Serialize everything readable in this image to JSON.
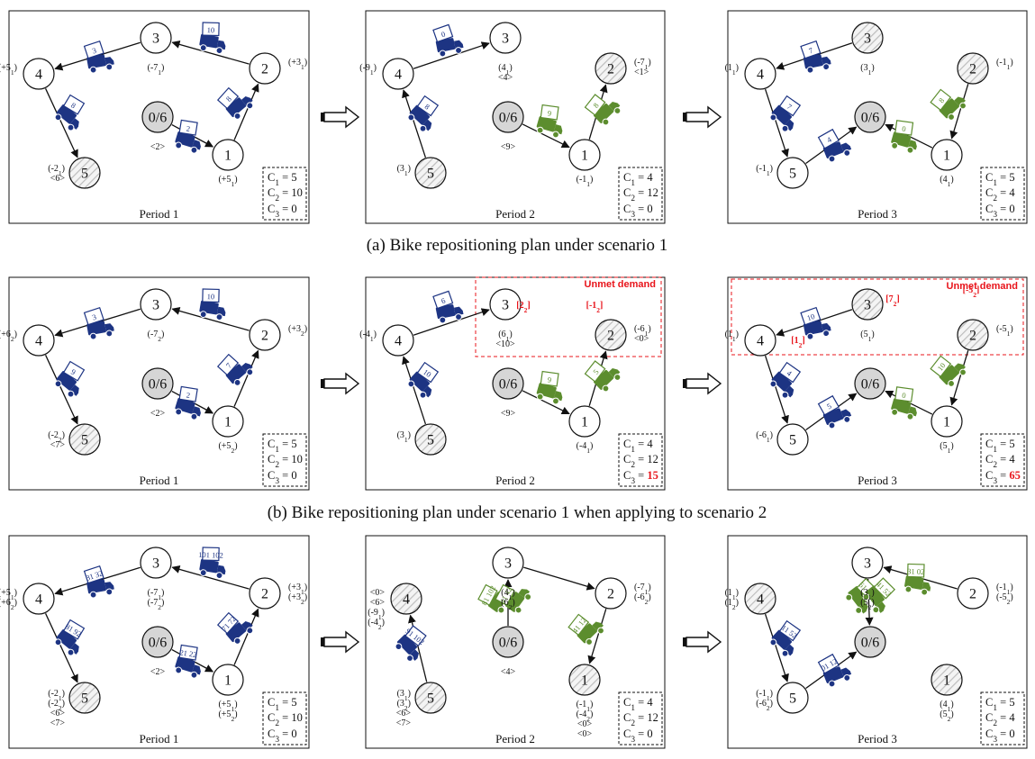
{
  "colors": {
    "blue_truck": "#1d3483",
    "green_truck": "#5c8d2e",
    "red": "#e8141b",
    "depot_fill": "#d6d6d6",
    "hatch": "#bdbdbd"
  },
  "icons": {
    "truck": "truck-icon",
    "next": "arrow-right-icon"
  },
  "captions": [
    "(a) Bike repositioning plan under scenario 1",
    "(b) Bike repositioning plan under scenario 1 when applying to scenario 2"
  ],
  "rows": [
    {
      "periods": [
        {
          "title": "Period 1",
          "costs": {
            "c1": "C1 = 5",
            "c2": "C2 = 10",
            "c3": "C3 = 0",
            "c3_red": ""
          },
          "nodes": [
            {
              "label": "3",
              "annotations": [
                "(-71)"
              ]
            },
            {
              "label": "2",
              "annotations": [
                "(+31)"
              ]
            },
            {
              "label": "4",
              "annotations": [
                "(+51)"
              ]
            },
            {
              "label": "0/6",
              "annotations": [
                "<2>"
              ]
            },
            {
              "label": "1",
              "annotations": [
                "(+51)"
              ]
            },
            {
              "label": "5",
              "annotations": [
                "(-21)",
                "<6>"
              ]
            }
          ],
          "trucks": [
            "3",
            "10",
            "8",
            "2",
            "8"
          ]
        },
        {
          "title": "Period 2",
          "costs": {
            "c1": "C1 = 4",
            "c2": "C2 = 12",
            "c3": "C3 = 0",
            "c3_red": ""
          },
          "nodes": [
            {
              "label": "3",
              "annotations": [
                "(41)",
                "<4>"
              ]
            },
            {
              "label": "2",
              "annotations": [
                "(-71)",
                "<1>"
              ]
            },
            {
              "label": "4",
              "annotations": [
                "(-91)"
              ]
            },
            {
              "label": "0/6",
              "annotations": [
                "<9>"
              ]
            },
            {
              "label": "1",
              "annotations": [
                "(-11)"
              ]
            },
            {
              "label": "5",
              "annotations": [
                "(31)"
              ]
            }
          ],
          "trucks": [
            "0",
            "8",
            "9",
            "8"
          ]
        },
        {
          "title": "Period 3",
          "costs": {
            "c1": "C1 = 5",
            "c2": "C2 = 4",
            "c3": "C3 = 0",
            "c3_red": ""
          },
          "nodes": [
            {
              "label": "3",
              "annotations": [
                "(31)"
              ]
            },
            {
              "label": "2",
              "annotations": [
                "(-11)"
              ]
            },
            {
              "label": "4",
              "annotations": [
                "(11)"
              ]
            },
            {
              "label": "0/6",
              "annotations": []
            },
            {
              "label": "1",
              "annotations": [
                "(41)"
              ]
            },
            {
              "label": "5",
              "annotations": [
                "(-11)"
              ]
            }
          ],
          "trucks": [
            "7",
            "8",
            "7",
            "4",
            "0"
          ]
        }
      ]
    },
    {
      "periods": [
        {
          "title": "Period 1",
          "costs": {
            "c1": "C1 = 5",
            "c2": "C2 = 10",
            "c3": "C3 = 0",
            "c3_red": ""
          },
          "nodes": [
            {
              "label": "3",
              "annotations": [
                "(-72)"
              ]
            },
            {
              "label": "2",
              "annotations": [
                "(+32)"
              ]
            },
            {
              "label": "4",
              "annotations": [
                "(+62)"
              ]
            },
            {
              "label": "0/6",
              "annotations": [
                "<2>"
              ]
            },
            {
              "label": "1",
              "annotations": [
                "(+52)"
              ]
            },
            {
              "label": "5",
              "annotations": [
                "(-22)",
                "<7>"
              ]
            }
          ],
          "trucks": [
            "3",
            "10",
            "9",
            "2",
            "7"
          ]
        },
        {
          "title": "Period 2",
          "costs": {
            "c1": "C1 = 4",
            "c2": "C2 = 12",
            "c3": "C3 = ",
            "c3_red": "15"
          },
          "unmet_label": "Unmet demand",
          "unmet_values": [
            "[22]",
            "[-12]"
          ],
          "nodes": [
            {
              "label": "3",
              "annotations": [
                "(61)",
                "<10>"
              ]
            },
            {
              "label": "2",
              "annotations": [
                "(-61)",
                "<0>"
              ]
            },
            {
              "label": "4",
              "annotations": [
                "(-41)"
              ]
            },
            {
              "label": "0/6",
              "annotations": [
                "<9>"
              ]
            },
            {
              "label": "1",
              "annotations": [
                "(-41)"
              ]
            },
            {
              "label": "5",
              "annotations": [
                "(31)"
              ]
            }
          ],
          "trucks": [
            "6",
            "10",
            "9",
            "5"
          ]
        },
        {
          "title": "Period 3",
          "costs": {
            "c1": "C1 = 5",
            "c2": "C2 = 4",
            "c3": "C3 = ",
            "c3_red": "65"
          },
          "unmet_label": "Unmet demand",
          "unmet_values": [
            "[72]",
            "[-52]",
            "[12]"
          ],
          "nodes": [
            {
              "label": "3",
              "annotations": [
                "(51)"
              ]
            },
            {
              "label": "2",
              "annotations": [
                "(-51)"
              ]
            },
            {
              "label": "4",
              "annotations": [
                "(11)"
              ]
            },
            {
              "label": "0/6",
              "annotations": []
            },
            {
              "label": "1",
              "annotations": [
                "(51)"
              ]
            },
            {
              "label": "5",
              "annotations": [
                "(-61)"
              ]
            }
          ],
          "trucks": [
            "10",
            "10",
            "4",
            "5",
            "0"
          ]
        }
      ]
    },
    {
      "periods": [
        {
          "title": "Period 1",
          "costs": {
            "c1": "C1 = 5",
            "c2": "C2 = 10",
            "c3": "C3 = 0",
            "c3_red": ""
          },
          "nodes": [
            {
              "label": "3",
              "annotations": [
                "(-71)",
                "(-72)"
              ]
            },
            {
              "label": "2",
              "annotations": [
                "(+31)",
                "(+32)"
              ]
            },
            {
              "label": "4",
              "annotations": [
                "(+51)",
                "(+62)"
              ]
            },
            {
              "label": "0/6",
              "annotations": [
                "<2>"
              ]
            },
            {
              "label": "1",
              "annotations": [
                "(+51)",
                "(+52)"
              ]
            },
            {
              "label": "5",
              "annotations": [
                "(-21)",
                "(-22)",
                "<6>",
                "<7>"
              ]
            }
          ],
          "trucks": [
            "31 32",
            "101 102",
            "81 92",
            "21 22",
            "71 72"
          ]
        },
        {
          "title": "Period 2",
          "costs": {
            "c1": "C1 = 4",
            "c2": "C2 = 12",
            "c3": "C3 = 0",
            "c3_red": ""
          },
          "nodes": [
            {
              "label": "3",
              "annotations": [
                "(41)",
                "(62)"
              ]
            },
            {
              "label": "2",
              "annotations": [
                "(-71)",
                "(-62)"
              ]
            },
            {
              "label": "4",
              "annotations": [
                "<0>",
                "<6>",
                "(-91)",
                "(-42)"
              ]
            },
            {
              "label": "0/6",
              "annotations": [
                "<4>"
              ]
            },
            {
              "label": "1",
              "annotations": [
                "(-11)",
                "(-42)",
                "<0>",
                "<0>"
              ]
            },
            {
              "label": "5",
              "annotations": [
                "(31)",
                "(32)",
                "<6>",
                "<7>"
              ]
            }
          ],
          "trucks": [
            "81 102",
            "41 42",
            "91 102",
            "41 12"
          ]
        },
        {
          "title": "Period 3",
          "costs": {
            "c1": "C1 = 5",
            "c2": "C2 = 4",
            "c3": "C3 = 0",
            "c3_red": ""
          },
          "nodes": [
            {
              "label": "3",
              "annotations": [
                "(31)",
                "(52)"
              ]
            },
            {
              "label": "2",
              "annotations": [
                "(-11)",
                "(-52)"
              ]
            },
            {
              "label": "4",
              "annotations": [
                "(11)",
                "(12)"
              ]
            },
            {
              "label": "0/6",
              "annotations": []
            },
            {
              "label": "1",
              "annotations": [
                "(41)",
                "(52)"
              ]
            },
            {
              "label": "5",
              "annotations": [
                "(-11)",
                "(-62)"
              ]
            }
          ],
          "trucks": [
            "31 02",
            "61 52",
            "11 52",
            "01 12",
            "41 52"
          ]
        }
      ]
    }
  ]
}
